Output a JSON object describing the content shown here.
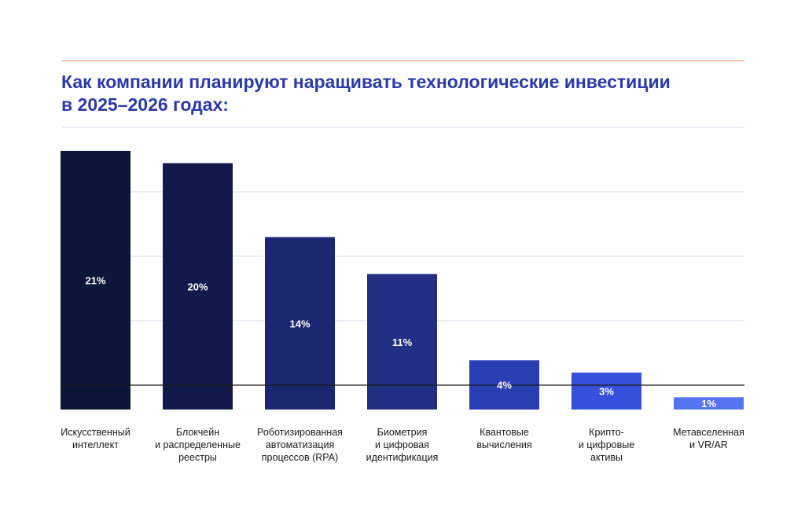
{
  "title": {
    "line1": "Как компании планируют наращивать технологические инвестиции",
    "line2": "в 2025–2026 годах:"
  },
  "colors": {
    "accent_rule": "#f08a6c",
    "title": "#2b3aa8",
    "grid": "#d9dbe6",
    "baseline": "#1a1a1a"
  },
  "chart_data": {
    "type": "bar",
    "categories": [
      [
        "Искусственный",
        "интеллект"
      ],
      [
        "Блокчейн",
        "и распределенные",
        "реестры"
      ],
      [
        "Роботизированная",
        "автоматизация",
        "процессов (RPA)"
      ],
      [
        "Биометрия",
        "и цифровая",
        "идентификация"
      ],
      [
        "Квантовые",
        "вычисления"
      ],
      [
        "Крипто-",
        "и цифровые",
        "активы"
      ],
      [
        "Метавселенная",
        "и VR/AR"
      ]
    ],
    "values": [
      21,
      20,
      14,
      11,
      4,
      3,
      1
    ],
    "value_labels": [
      "21%",
      "20%",
      "14%",
      "11%",
      "4%",
      "3%",
      "1%"
    ],
    "colors": [
      "#0d1538",
      "#111a4a",
      "#1b2770",
      "#222f82",
      "#2a3eb4",
      "#3450dc",
      "#5474f2"
    ],
    "unit": "%",
    "grid": true
  }
}
